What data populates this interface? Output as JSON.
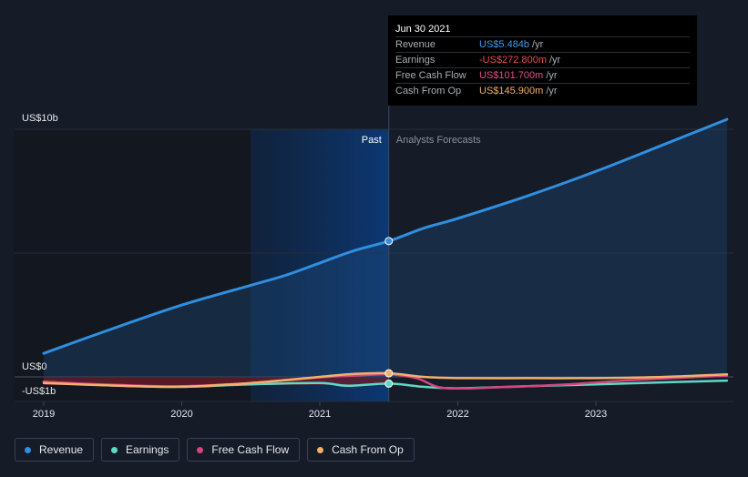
{
  "chart_data": {
    "type": "line",
    "y_axis": {
      "top_label": "US$10b",
      "zero_label": "US$0",
      "bottom_label": "-US$1b",
      "ylim": [
        -1,
        10
      ]
    },
    "x_axis": {
      "ticks": [
        {
          "label": "2019",
          "value": 2019.0
        },
        {
          "label": "2020",
          "value": 2020.0
        },
        {
          "label": "2021",
          "value": 2021.0
        },
        {
          "label": "2022",
          "value": 2022.0
        },
        {
          "label": "2023",
          "value": 2023.0
        }
      ],
      "xlim": [
        2018.75,
        2023.95
      ]
    },
    "regions": {
      "past_label": "Past",
      "forecast_label": "Analysts Forecasts",
      "divider_x": 2021.5,
      "highlight_start_x": 2020.5
    },
    "series": [
      {
        "name": "Revenue",
        "color": "#2f8fe0",
        "fill": true,
        "points": [
          [
            2019.0,
            0.95
          ],
          [
            2019.5,
            1.95
          ],
          [
            2020.0,
            2.9
          ],
          [
            2020.5,
            3.7
          ],
          [
            2020.75,
            4.1
          ],
          [
            2021.0,
            4.6
          ],
          [
            2021.25,
            5.1
          ],
          [
            2021.5,
            5.484
          ],
          [
            2021.75,
            6.0
          ],
          [
            2022.0,
            6.4
          ],
          [
            2022.5,
            7.3
          ],
          [
            2023.0,
            8.3
          ],
          [
            2023.5,
            9.4
          ],
          [
            2023.95,
            10.4
          ]
        ]
      },
      {
        "name": "Earnings",
        "color": "#5fd9c5",
        "fill": false,
        "points": [
          [
            2019.0,
            -0.2
          ],
          [
            2019.5,
            -0.35
          ],
          [
            2020.0,
            -0.4
          ],
          [
            2020.5,
            -0.3
          ],
          [
            2021.0,
            -0.25
          ],
          [
            2021.2,
            -0.36
          ],
          [
            2021.5,
            -0.2728
          ],
          [
            2021.75,
            -0.4
          ],
          [
            2022.0,
            -0.46
          ],
          [
            2022.5,
            -0.38
          ],
          [
            2023.0,
            -0.3
          ],
          [
            2023.5,
            -0.22
          ],
          [
            2023.95,
            -0.15
          ]
        ]
      },
      {
        "name": "Free Cash Flow",
        "color": "#d6457f",
        "fill": false,
        "points": [
          [
            2019.0,
            -0.2
          ],
          [
            2019.5,
            -0.32
          ],
          [
            2020.0,
            -0.38
          ],
          [
            2020.5,
            -0.25
          ],
          [
            2021.0,
            -0.02
          ],
          [
            2021.25,
            0.05
          ],
          [
            2021.5,
            0.1017
          ],
          [
            2021.7,
            -0.05
          ],
          [
            2021.9,
            -0.45
          ],
          [
            2022.3,
            -0.42
          ],
          [
            2022.8,
            -0.3
          ],
          [
            2023.3,
            -0.12
          ],
          [
            2023.95,
            0.05
          ]
        ]
      },
      {
        "name": "Cash From Op",
        "color": "#f2b06b",
        "fill": false,
        "points": [
          [
            2019.0,
            -0.25
          ],
          [
            2019.5,
            -0.35
          ],
          [
            2020.0,
            -0.4
          ],
          [
            2020.5,
            -0.25
          ],
          [
            2021.0,
            0.0
          ],
          [
            2021.25,
            0.12
          ],
          [
            2021.5,
            0.1459
          ],
          [
            2021.75,
            0.0
          ],
          [
            2022.0,
            -0.05
          ],
          [
            2022.5,
            -0.05
          ],
          [
            2023.0,
            -0.05
          ],
          [
            2023.5,
            0.0
          ],
          [
            2023.95,
            0.1
          ]
        ]
      }
    ],
    "highlight_x": 2021.5
  },
  "tooltip": {
    "date": "Jun 30 2021",
    "rows": [
      {
        "name": "Revenue",
        "value": "US$5.484b",
        "suffix": "/yr",
        "color": "#3a9ef0"
      },
      {
        "name": "Earnings",
        "value": "-US$272.800m",
        "suffix": "/yr",
        "color": "#e84b4b"
      },
      {
        "name": "Free Cash Flow",
        "value": "US$101.700m",
        "suffix": "/yr",
        "color": "#e0508a"
      },
      {
        "name": "Cash From Op",
        "value": "US$145.900m",
        "suffix": "/yr",
        "color": "#f2b06b"
      }
    ]
  },
  "legend": [
    {
      "label": "Revenue",
      "color": "#2f8fe0"
    },
    {
      "label": "Earnings",
      "color": "#5fd9c5"
    },
    {
      "label": "Free Cash Flow",
      "color": "#d6457f"
    },
    {
      "label": "Cash From Op",
      "color": "#f2b06b"
    }
  ]
}
